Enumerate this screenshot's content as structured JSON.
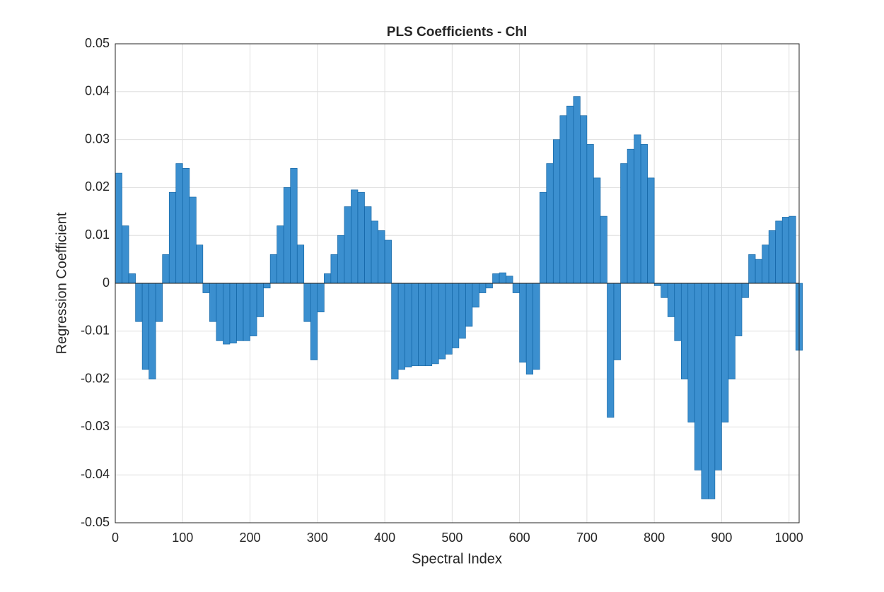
{
  "chart_data": {
    "type": "bar",
    "title": "PLS Coefficients - Chl",
    "x_label": "Spectral Index",
    "y_label": "Regression Coefficient",
    "x": [
      0,
      10,
      20,
      30,
      40,
      50,
      60,
      70,
      80,
      90,
      100,
      110,
      120,
      130,
      140,
      150,
      160,
      170,
      180,
      190,
      200,
      210,
      220,
      230,
      240,
      250,
      260,
      270,
      280,
      290,
      300,
      310,
      320,
      330,
      340,
      350,
      360,
      370,
      380,
      390,
      400,
      410,
      420,
      430,
      440,
      450,
      460,
      470,
      480,
      490,
      500,
      510,
      520,
      530,
      540,
      550,
      560,
      570,
      580,
      590,
      600,
      610,
      620,
      630,
      640,
      650,
      660,
      670,
      680,
      690,
      700,
      710,
      720,
      730,
      740,
      750,
      760,
      770,
      780,
      790,
      800,
      810,
      820,
      830,
      840,
      850,
      860,
      870,
      880,
      890,
      900,
      910,
      920,
      930,
      940,
      950,
      960,
      970,
      980,
      990,
      1000,
      1010
    ],
    "values": [
      0.023,
      0.012,
      0.002,
      -0.008,
      -0.018,
      -0.02,
      -0.008,
      0.006,
      0.019,
      0.025,
      0.024,
      0.018,
      0.008,
      -0.002,
      -0.008,
      -0.012,
      -0.0127,
      -0.0125,
      -0.012,
      -0.012,
      -0.011,
      -0.007,
      -0.001,
      0.006,
      0.012,
      0.02,
      0.024,
      0.008,
      -0.008,
      -0.016,
      -0.006,
      0.002,
      0.006,
      0.01,
      0.016,
      0.0195,
      0.019,
      0.016,
      0.013,
      0.011,
      0.009,
      -0.02,
      -0.018,
      -0.0175,
      -0.0172,
      -0.0172,
      -0.0172,
      -0.0168,
      -0.0158,
      -0.0148,
      -0.0135,
      -0.0115,
      -0.009,
      -0.005,
      -0.002,
      -0.001,
      0.002,
      0.0022,
      0.0015,
      -0.002,
      -0.0165,
      -0.019,
      -0.018,
      0.019,
      0.025,
      0.03,
      0.035,
      0.037,
      0.039,
      0.035,
      0.029,
      0.022,
      0.014,
      -0.028,
      -0.016,
      0.025,
      0.028,
      0.031,
      0.029,
      0.022,
      -0.0005,
      -0.003,
      -0.007,
      -0.012,
      -0.02,
      -0.029,
      -0.039,
      -0.045,
      -0.045,
      -0.039,
      -0.029,
      -0.02,
      -0.011,
      -0.003,
      0.006,
      0.005,
      0.008,
      0.011,
      0.013,
      0.0138,
      0.014,
      -0.014
    ],
    "color": "#3b8fcf",
    "xlim": [
      0,
      1015
    ],
    "ylim": [
      -0.05,
      0.05
    ],
    "xticks": [
      0,
      100,
      200,
      300,
      400,
      500,
      600,
      700,
      800,
      900,
      1000
    ],
    "yticks": [
      -0.05,
      -0.04,
      -0.03,
      -0.02,
      -0.01,
      0,
      0.01,
      0.02,
      0.03,
      0.04,
      0.05
    ],
    "grid": true
  }
}
